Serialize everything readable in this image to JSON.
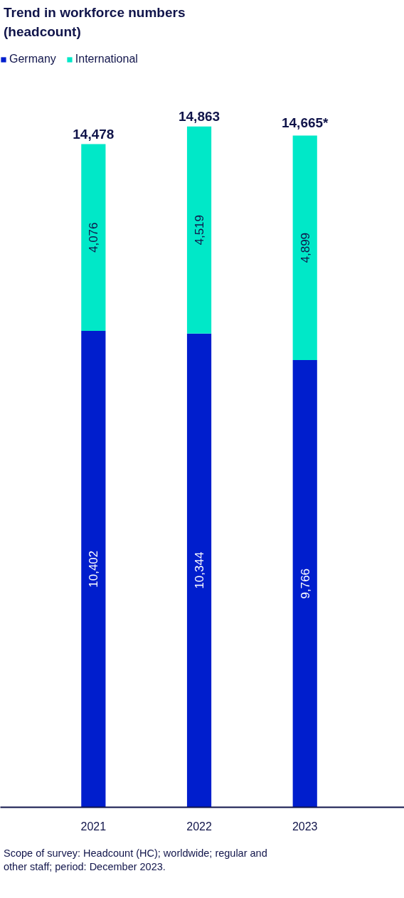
{
  "chart_data": {
    "type": "bar",
    "stacked": true,
    "title": "Trend in workforce numbers (headcount)",
    "categories": [
      "2021",
      "2022",
      "2023"
    ],
    "series": [
      {
        "name": "Germany",
        "color": "#001ecd",
        "values": [
          10402,
          10344,
          9766
        ],
        "value_labels": [
          "10,402",
          "10,344",
          "9,766"
        ]
      },
      {
        "name": "International",
        "color": "#00e8c8",
        "values": [
          4076,
          4519,
          4899
        ],
        "value_labels": [
          "4,076",
          "4,519",
          "4,899"
        ]
      }
    ],
    "totals": [
      "14,478",
      "14,863",
      "14,665*"
    ],
    "tick_labels": "x",
    "grid": false,
    "legend": "top left",
    "annotations": [
      "Scope of survey: Headcount (HC); worldwide; regular and other staff; period: December 2023."
    ]
  }
}
